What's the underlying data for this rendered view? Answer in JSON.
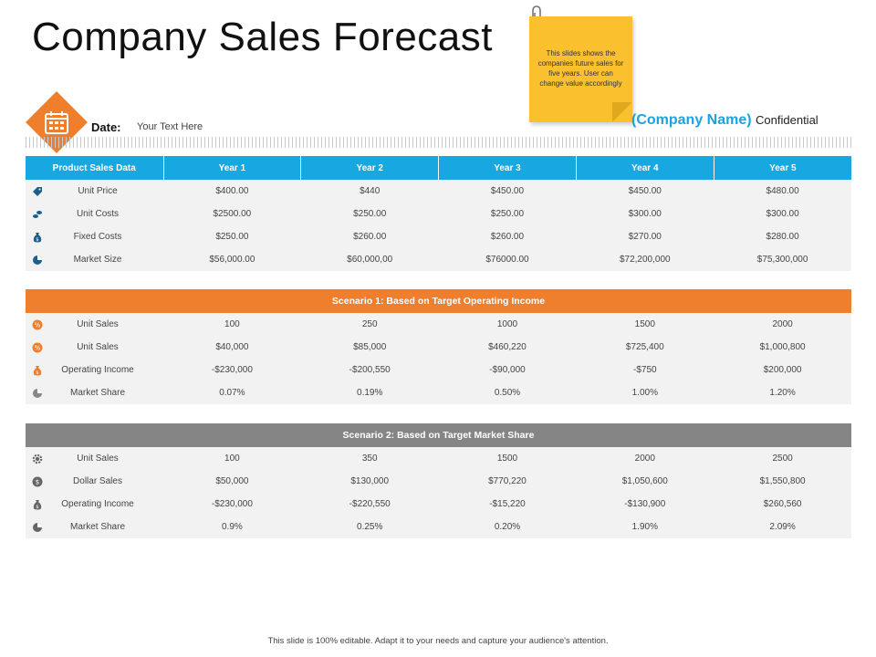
{
  "page": {
    "title": "Company Sales Forecast",
    "sticky_note": "This slides shows the companies future sales for five years. User can change value accordingly",
    "date_label": "Date:",
    "date_text": "Your Text Here",
    "company_name": "(Company Name)",
    "confidential": "Confidential",
    "footer": "This slide is 100% editable. Adapt it to your needs and capture your audience's attention."
  },
  "colors": {
    "accent_blue": "#17a8e2",
    "accent_orange": "#ef7e2d",
    "band_gray": "#858585",
    "sticky_yellow": "#fbc02d"
  },
  "table1": {
    "headers": [
      "Product Sales Data",
      "Year 1",
      "Year 2",
      "Year 3",
      "Year 4",
      "Year 5"
    ],
    "rows": [
      {
        "icon": "tag-icon",
        "label": "Unit Price",
        "values": [
          "$400.00",
          "$440",
          "$450.00",
          "$450.00",
          "$480.00"
        ]
      },
      {
        "icon": "coins-icon",
        "label": "Unit Costs",
        "values": [
          "$2500.00",
          "$250.00",
          "$250.00",
          "$300.00",
          "$300.00"
        ]
      },
      {
        "icon": "money-bag-icon",
        "label": "Fixed Costs",
        "values": [
          "$250.00",
          "$260.00",
          "$260.00",
          "$270.00",
          "$280.00"
        ]
      },
      {
        "icon": "pie-chart-icon",
        "label": "Market Size",
        "values": [
          "$56,000.00",
          "$60,000,00",
          "$76000.00",
          "$72,200,000",
          "$75,300,000"
        ]
      }
    ]
  },
  "table2": {
    "title": "Scenario 1: Based on Target Operating Income",
    "rows": [
      {
        "icon": "percent-badge-icon",
        "label": "Unit Sales",
        "values": [
          "100",
          "250",
          "1000",
          "1500",
          "2000"
        ]
      },
      {
        "icon": "percent-badge-icon",
        "label": "Unit Sales",
        "values": [
          "$40,000",
          "$85,000",
          "$460,220",
          "$725,400",
          "$1,000,800"
        ]
      },
      {
        "icon": "money-bag-icon",
        "label": "Operating Income",
        "values": [
          "-$230,000",
          "-$200,550",
          "-$90,000",
          "-$750",
          "$200,000"
        ]
      },
      {
        "icon": "pie-chart-icon",
        "label": "Market Share",
        "values": [
          "0.07%",
          "0.19%",
          "0.50%",
          "1.00%",
          "1.20%"
        ]
      }
    ]
  },
  "table3": {
    "title": "Scenario 2: Based on Target Market Share",
    "rows": [
      {
        "icon": "gear-icon",
        "label": "Unit Sales",
        "values": [
          "100",
          "350",
          "1500",
          "2000",
          "2500"
        ]
      },
      {
        "icon": "dollar-coin-icon",
        "label": "Dollar Sales",
        "values": [
          "$50,000",
          "$130,000",
          "$770,220",
          "$1,050,600",
          "$1,550,800"
        ]
      },
      {
        "icon": "money-bag-icon",
        "label": "Operating Income",
        "values": [
          "-$230,000",
          "-$220,550",
          "-$15,220",
          "-$130,900",
          "$260,560"
        ]
      },
      {
        "icon": "pie-chart-icon",
        "label": "Market Share",
        "values": [
          "0.9%",
          "0.25%",
          "0.20%",
          "1.90%",
          "2.09%"
        ]
      }
    ]
  }
}
